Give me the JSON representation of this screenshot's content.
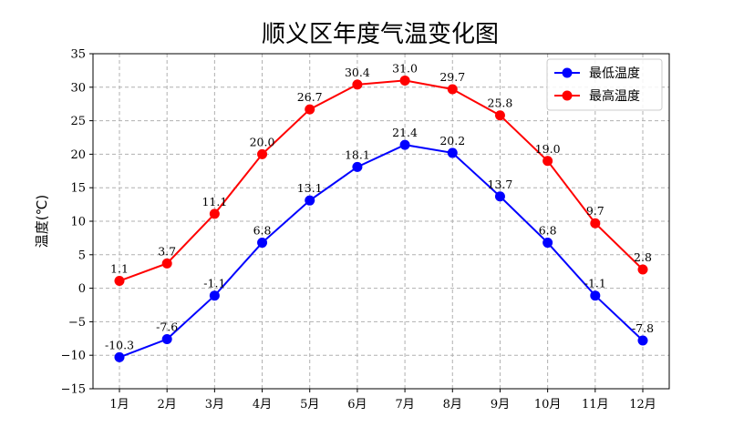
{
  "chart_data": {
    "type": "line",
    "title": "顺义区年度气温变化图",
    "xlabel": "",
    "ylabel": "温度(℃)",
    "categories": [
      "1月",
      "2月",
      "3月",
      "4月",
      "5月",
      "6月",
      "7月",
      "8月",
      "9月",
      "10月",
      "11月",
      "12月"
    ],
    "ylim": [
      -15,
      35
    ],
    "yticks": [
      -15,
      -10,
      -5,
      0,
      5,
      10,
      15,
      20,
      25,
      30,
      35
    ],
    "ytick_labels": [
      "−15",
      "−10",
      "−5",
      "0",
      "5",
      "10",
      "15",
      "20",
      "25",
      "30",
      "35"
    ],
    "grid": true,
    "legend_position": "top-right",
    "series": [
      {
        "name": "最低温度",
        "color": "#0000ff",
        "values": [
          -10.3,
          -7.6,
          -1.1,
          6.8,
          13.1,
          18.1,
          21.4,
          20.2,
          13.7,
          6.8,
          -1.1,
          -7.8
        ],
        "labels": [
          "-10.3",
          "-7.6",
          "-1.1",
          "6.8",
          "13.1",
          "18.1",
          "21.4",
          "20.2",
          "13.7",
          "6.8",
          "-1.1",
          "-7.8"
        ]
      },
      {
        "name": "最高温度",
        "color": "#ff0000",
        "values": [
          1.1,
          3.7,
          11.1,
          20.0,
          26.7,
          30.4,
          31.0,
          29.7,
          25.8,
          19.0,
          9.7,
          2.8
        ],
        "labels": [
          "1.1",
          "3.7",
          "11.1",
          "20.0",
          "26.7",
          "30.4",
          "31.0",
          "29.7",
          "25.8",
          "19.0",
          "9.7",
          "2.8"
        ]
      }
    ]
  }
}
